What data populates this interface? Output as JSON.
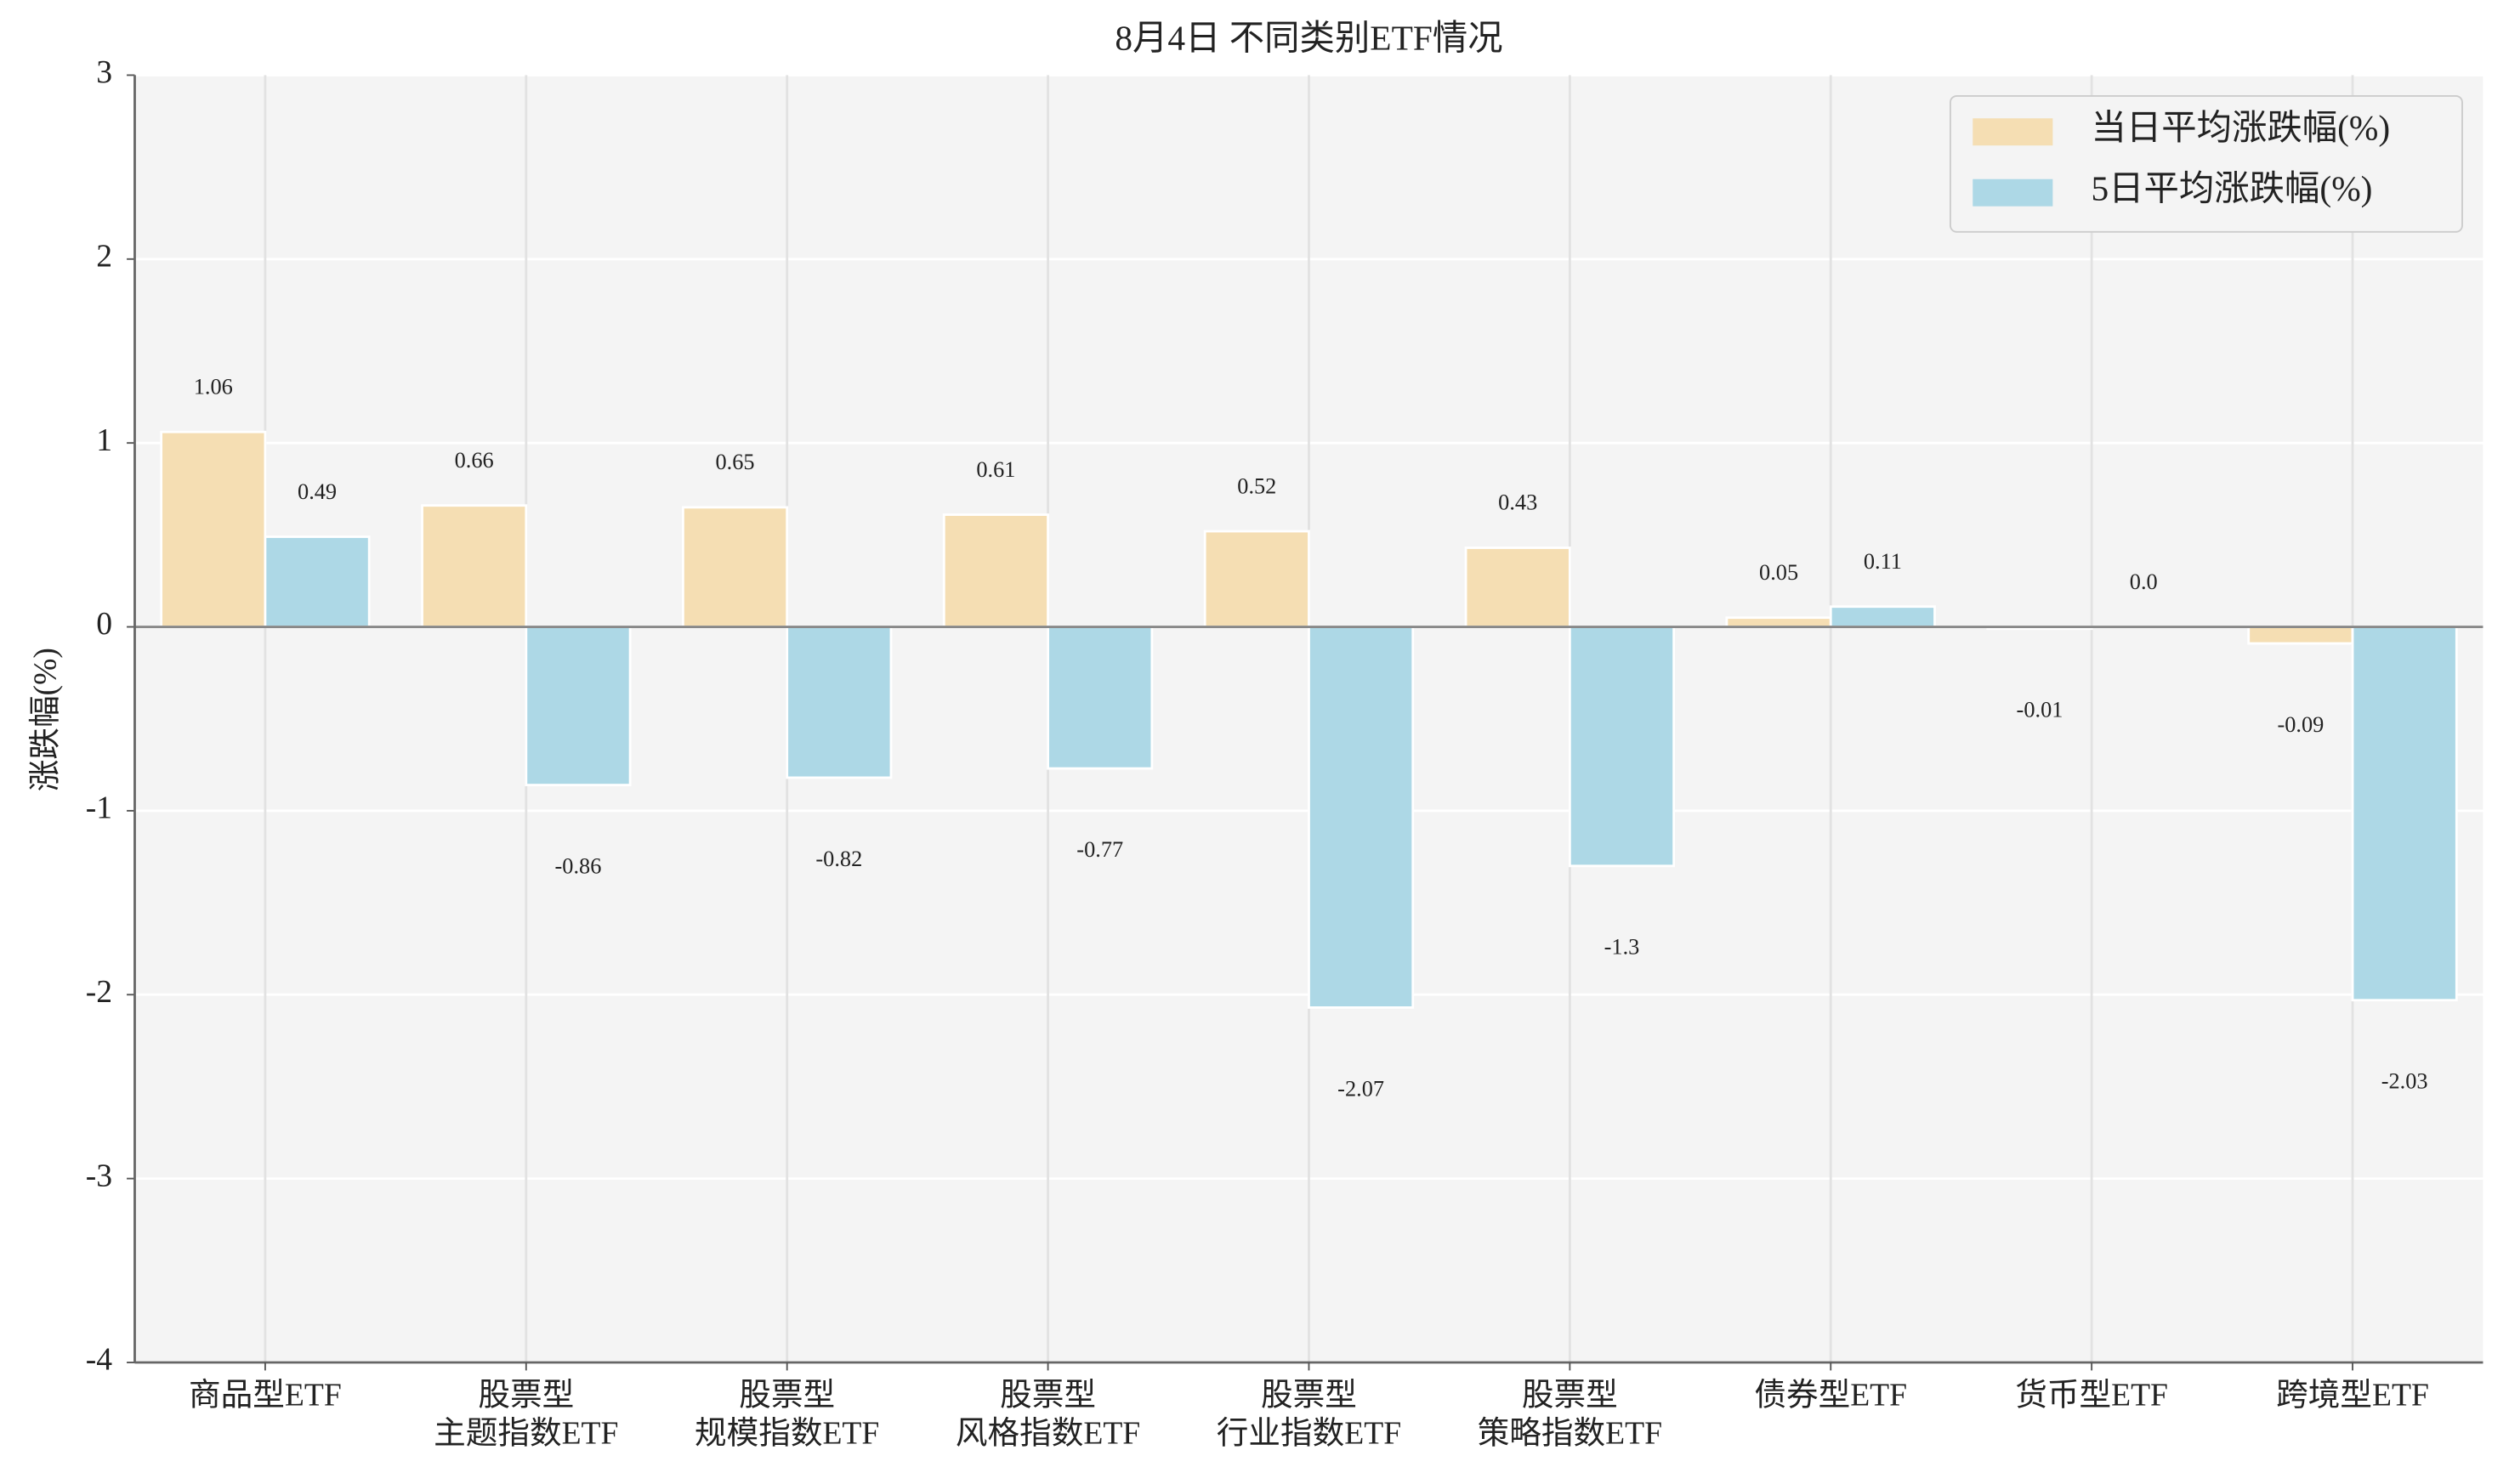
{
  "chart_data": {
    "type": "bar",
    "title": "8月4日 不同类别ETF情况",
    "y_label": "涨跌幅(%)",
    "categories": [
      "商品型ETF",
      "股票型\n主题指数ETF",
      "股票型\n规模指数ETF",
      "股票型\n风格指数ETF",
      "股票型\n行业指数ETF",
      "股票型\n策略指数ETF",
      "债券型ETF",
      "货币型ETF",
      "跨境型ETF"
    ],
    "series": [
      {
        "name": "当日平均涨跌幅(%)",
        "color": "#f5deb3",
        "values": [
          1.06,
          0.66,
          0.65,
          0.61,
          0.52,
          0.43,
          0.05,
          -0.01,
          -0.09
        ]
      },
      {
        "name": "5日平均涨跌幅(%)",
        "color": "#add8e6",
        "values": [
          0.49,
          -0.86,
          -0.82,
          -0.77,
          -2.07,
          -1.3,
          0.11,
          0.0,
          -2.03
        ],
        "value_labels": [
          "0.49",
          "-0.86",
          "-0.82",
          "-0.77",
          "-2.07",
          "-1.3",
          "0.11",
          "0.0",
          "-2.03"
        ]
      }
    ],
    "ylim": [
      -4,
      3
    ],
    "yticks": [
      -4,
      -3,
      -2,
      -1,
      0,
      1,
      2,
      3
    ],
    "grid": true,
    "legend": "upper right"
  }
}
